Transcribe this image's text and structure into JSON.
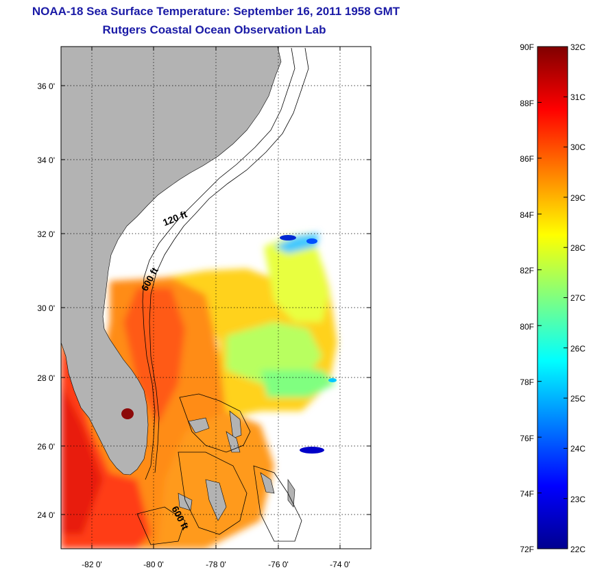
{
  "title": {
    "line1": "NOAA-18 Sea Surface Temperature:  September 16, 2011 1958 GMT",
    "line2": "Rutgers Coastal Ocean Observation Lab"
  },
  "map": {
    "lat_labels": [
      "36 0'",
      "34 0'",
      "32 0'",
      "30 0'",
      "28 0'",
      "26 0'",
      "24 0'"
    ],
    "lon_labels": [
      "-82 0'",
      "-80 0'",
      "-78 0'",
      "-76 0'",
      "-74 0'"
    ],
    "contour_labels": [
      "120 ft",
      "600 ft",
      "600 ft"
    ],
    "colors": {
      "land": "#b3b3b3",
      "ocean_nodata": "#ffffff",
      "grid": "#000000"
    }
  },
  "colorbar": {
    "fahrenheit_labels": [
      "90F",
      "88F",
      "86F",
      "84F",
      "82F",
      "80F",
      "78F",
      "76F",
      "74F",
      "72F"
    ],
    "celsius_labels": [
      "32C",
      "31C",
      "30C",
      "29C",
      "28C",
      "27C",
      "26C",
      "25C",
      "24C",
      "23C",
      "22C"
    ],
    "range_c": [
      22,
      32
    ],
    "range_f": [
      72,
      90
    ],
    "colors": [
      "#00008f",
      "#0000ff",
      "#0080ff",
      "#00ffff",
      "#80ff80",
      "#ffff00",
      "#ff8000",
      "#ff0000",
      "#800000"
    ]
  }
}
